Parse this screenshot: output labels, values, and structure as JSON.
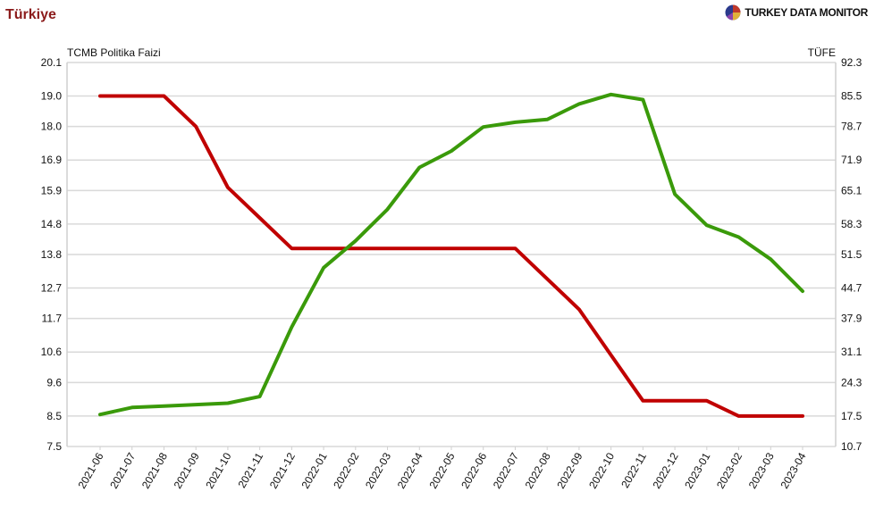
{
  "header": {
    "title": "Türkiye",
    "brand": "TURKEY DATA MONITOR"
  },
  "colors": {
    "policy_rate": "#c00000",
    "inflation": "#3a9a0a",
    "title": "#8b1a1a"
  },
  "chart_data": {
    "type": "line",
    "categories": [
      "2021-06",
      "2021-07",
      "2021-08",
      "2021-09",
      "2021-10",
      "2021-11",
      "2021-12",
      "2022-01",
      "2022-02",
      "2022-03",
      "2022-04",
      "2022-05",
      "2022-06",
      "2022-07",
      "2022-08",
      "2022-09",
      "2022-10",
      "2022-11",
      "2022-12",
      "2023-01",
      "2023-02",
      "2023-03",
      "2023-04"
    ],
    "ylabel_left": "TCMB Politika Faizi",
    "ylabel_right": "TÜFE",
    "yticks_left": [
      "20.1",
      "19.0",
      "18.0",
      "16.9",
      "15.9",
      "14.8",
      "13.8",
      "12.7",
      "11.7",
      "10.6",
      "9.6",
      "8.5",
      "7.5"
    ],
    "yticks_right": [
      "92.3",
      "85.5",
      "78.7",
      "71.9",
      "65.1",
      "58.3",
      "51.5",
      "44.7",
      "37.9",
      "31.1",
      "24.3",
      "17.5",
      "10.7"
    ],
    "ylim_left": [
      7.5,
      20.1
    ],
    "ylim_right": [
      10.7,
      92.3
    ],
    "grid": true,
    "series": [
      {
        "name": "TCMB Politika Faizi",
        "axis": "left",
        "color": "#c00000",
        "values": [
          19.0,
          19.0,
          19.0,
          18.0,
          16.0,
          15.0,
          14.0,
          14.0,
          14.0,
          14.0,
          14.0,
          14.0,
          14.0,
          14.0,
          13.0,
          12.0,
          10.5,
          9.0,
          9.0,
          9.0,
          8.5,
          8.5,
          8.5
        ]
      },
      {
        "name": "TÜFE",
        "axis": "right",
        "color": "#3a9a0a",
        "values": [
          17.5,
          19.0,
          19.3,
          19.6,
          19.9,
          21.3,
          36.1,
          48.7,
          54.4,
          61.1,
          70.0,
          73.5,
          78.6,
          79.6,
          80.2,
          83.5,
          85.5,
          84.4,
          64.3,
          57.7,
          55.2,
          50.5,
          43.7
        ]
      }
    ]
  }
}
